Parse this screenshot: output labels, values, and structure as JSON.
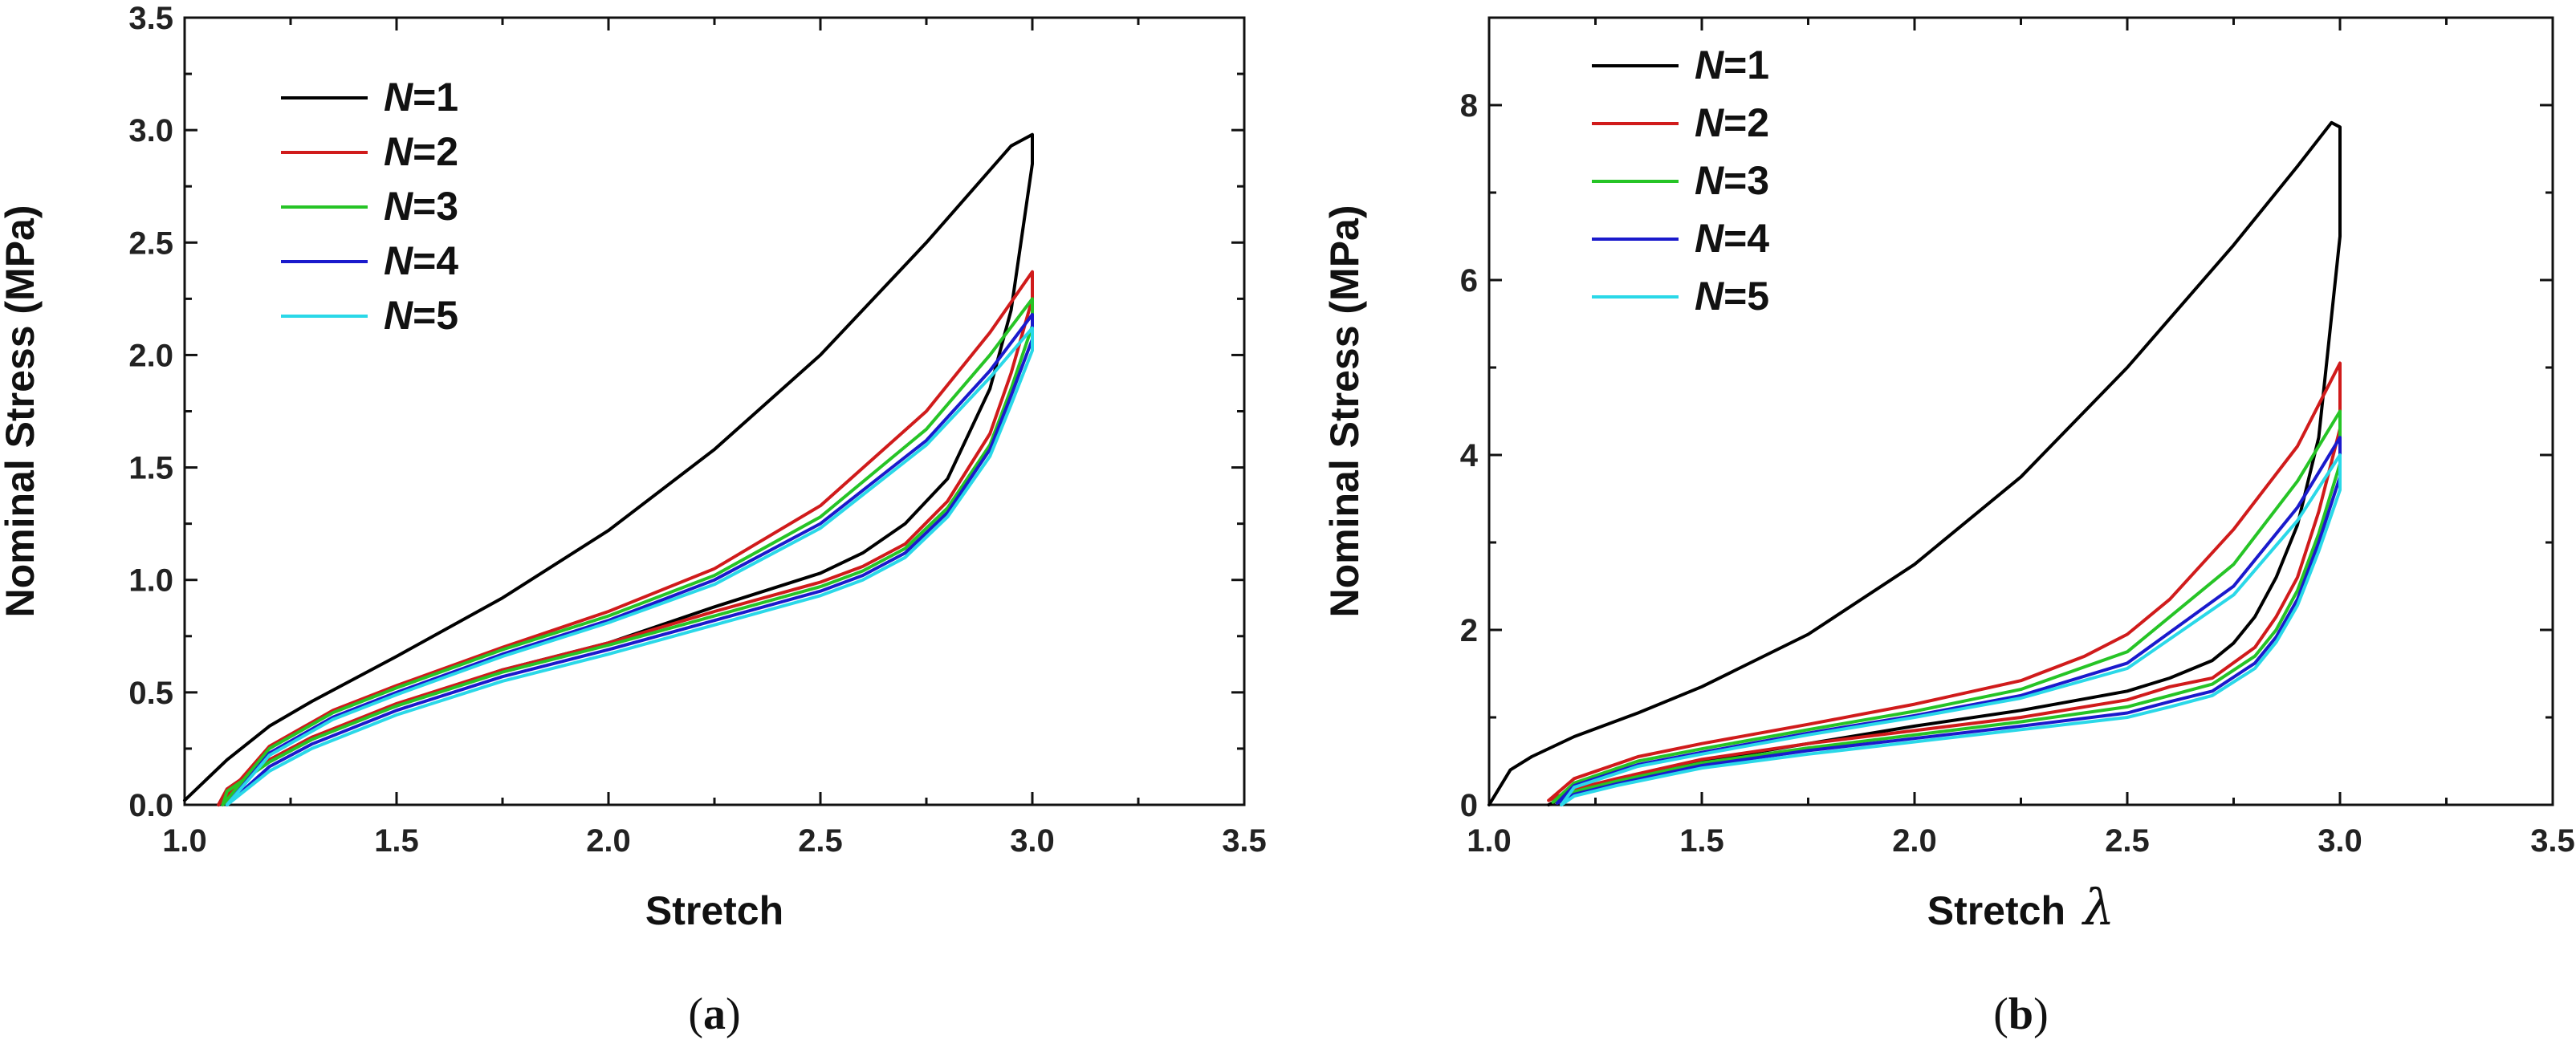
{
  "chart_data": [
    {
      "type": "line",
      "panel_label": "a",
      "xlabel": "Stretch",
      "ylabel": "Nominal Stress (MPa)",
      "xlim": [
        1.0,
        3.5
      ],
      "ylim": [
        0.0,
        3.5
      ],
      "xticks": [
        "1.0",
        "1.5",
        "2.0",
        "2.5",
        "3.0",
        "3.5"
      ],
      "yticks": [
        "0.0",
        "0.5",
        "1.0",
        "1.5",
        "2.0",
        "2.5",
        "3.0",
        "3.5"
      ],
      "legend": {
        "placement": "top-left"
      },
      "series": [
        {
          "name": "N=1",
          "label_var": "N",
          "label_val": "=1",
          "color": "#000000",
          "x": [
            1.0,
            1.1,
            1.2,
            1.3,
            1.5,
            1.75,
            2.0,
            2.25,
            2.5,
            2.75,
            2.95,
            3.0,
            3.0,
            2.95,
            2.9,
            2.8,
            2.7,
            2.6,
            2.5,
            2.25,
            2.0,
            1.75,
            1.5,
            1.3,
            1.2,
            1.1,
            1.08
          ],
          "y": [
            0.02,
            0.2,
            0.35,
            0.46,
            0.66,
            0.92,
            1.22,
            1.58,
            2.0,
            2.5,
            2.93,
            2.98,
            2.85,
            2.2,
            1.85,
            1.45,
            1.25,
            1.12,
            1.03,
            0.88,
            0.72,
            0.6,
            0.44,
            0.3,
            0.2,
            0.07,
            0.0
          ]
        },
        {
          "name": "N=2",
          "label_var": "N",
          "label_val": "=2",
          "color": "#d01b1b",
          "x": [
            1.08,
            1.2,
            1.35,
            1.5,
            1.75,
            2.0,
            2.25,
            2.5,
            2.75,
            2.9,
            3.0,
            3.0,
            2.95,
            2.9,
            2.8,
            2.7,
            2.6,
            2.5,
            2.25,
            2.0,
            1.75,
            1.5,
            1.3,
            1.2,
            1.1,
            1.08
          ],
          "y": [
            0.0,
            0.26,
            0.42,
            0.53,
            0.7,
            0.86,
            1.05,
            1.33,
            1.75,
            2.1,
            2.37,
            2.25,
            1.92,
            1.65,
            1.35,
            1.16,
            1.06,
            0.99,
            0.86,
            0.72,
            0.6,
            0.45,
            0.3,
            0.2,
            0.07,
            0.0
          ]
        },
        {
          "name": "N=3",
          "label_var": "N",
          "label_val": "=3",
          "color": "#26c426",
          "x": [
            1.09,
            1.2,
            1.35,
            1.5,
            1.75,
            2.0,
            2.25,
            2.5,
            2.75,
            2.9,
            3.0,
            3.0,
            2.95,
            2.9,
            2.8,
            2.7,
            2.6,
            2.5,
            2.25,
            2.0,
            1.75,
            1.5,
            1.3,
            1.2,
            1.1,
            1.09
          ],
          "y": [
            0.0,
            0.25,
            0.41,
            0.52,
            0.69,
            0.84,
            1.02,
            1.28,
            1.67,
            2.0,
            2.25,
            2.13,
            1.85,
            1.6,
            1.32,
            1.14,
            1.04,
            0.97,
            0.84,
            0.71,
            0.59,
            0.44,
            0.29,
            0.19,
            0.06,
            0.0
          ]
        },
        {
          "name": "N=4",
          "label_var": "N",
          "label_val": "=4",
          "color": "#1a1acc",
          "x": [
            1.1,
            1.2,
            1.35,
            1.5,
            1.75,
            2.0,
            2.25,
            2.5,
            2.75,
            2.9,
            3.0,
            3.0,
            2.95,
            2.9,
            2.8,
            2.7,
            2.6,
            2.5,
            2.25,
            2.0,
            1.75,
            1.5,
            1.3,
            1.2,
            1.1
          ],
          "y": [
            0.0,
            0.23,
            0.39,
            0.5,
            0.67,
            0.82,
            1.0,
            1.25,
            1.62,
            1.93,
            2.18,
            2.07,
            1.82,
            1.58,
            1.3,
            1.12,
            1.02,
            0.95,
            0.82,
            0.69,
            0.57,
            0.42,
            0.27,
            0.17,
            0.0
          ]
        },
        {
          "name": "N=5",
          "label_var": "N",
          "label_val": "=5",
          "color": "#2ad8e8",
          "x": [
            1.1,
            1.2,
            1.35,
            1.5,
            1.75,
            2.0,
            2.25,
            2.5,
            2.75,
            2.9,
            3.0,
            3.0,
            2.95,
            2.9,
            2.8,
            2.7,
            2.6,
            2.5,
            2.25,
            2.0,
            1.75,
            1.5,
            1.3,
            1.2,
            1.1
          ],
          "y": [
            0.0,
            0.22,
            0.38,
            0.49,
            0.66,
            0.81,
            0.98,
            1.23,
            1.6,
            1.9,
            2.12,
            2.02,
            1.78,
            1.55,
            1.28,
            1.1,
            1.0,
            0.93,
            0.8,
            0.67,
            0.55,
            0.4,
            0.25,
            0.15,
            0.0
          ]
        }
      ]
    },
    {
      "type": "line",
      "panel_label": "b",
      "xlabel": "Stretch",
      "xlabel_symbol": "λ",
      "ylabel": "Nominal Stress (MPa)",
      "xlim": [
        1.0,
        3.5
      ],
      "ylim": [
        0,
        9
      ],
      "xticks": [
        "1.0",
        "1.5",
        "2.0",
        "2.5",
        "3.0",
        "3.5"
      ],
      "yticks": [
        "0",
        "2",
        "4",
        "6",
        "8"
      ],
      "legend": {
        "placement": "top-left"
      },
      "series": [
        {
          "name": "N=1",
          "label_var": "N",
          "label_val": "=1",
          "color": "#000000",
          "x": [
            1.0,
            1.05,
            1.1,
            1.2,
            1.35,
            1.5,
            1.75,
            2.0,
            2.25,
            2.5,
            2.75,
            2.9,
            2.98,
            3.0,
            3.0,
            2.95,
            2.9,
            2.85,
            2.8,
            2.75,
            2.7,
            2.6,
            2.5,
            2.25,
            2.0,
            1.75,
            1.5,
            1.35,
            1.25,
            1.18,
            1.14
          ],
          "y": [
            0.0,
            0.4,
            0.55,
            0.78,
            1.05,
            1.35,
            1.95,
            2.75,
            3.75,
            5.0,
            6.4,
            7.3,
            7.8,
            7.75,
            6.5,
            4.2,
            3.2,
            2.6,
            2.15,
            1.85,
            1.65,
            1.45,
            1.3,
            1.08,
            0.9,
            0.7,
            0.5,
            0.35,
            0.22,
            0.1,
            0.0
          ]
        },
        {
          "name": "N=2",
          "label_var": "N",
          "label_val": "=2",
          "color": "#d01b1b",
          "x": [
            1.14,
            1.2,
            1.35,
            1.5,
            1.75,
            2.0,
            2.25,
            2.4,
            2.5,
            2.6,
            2.75,
            2.9,
            3.0,
            3.0,
            2.95,
            2.9,
            2.85,
            2.8,
            2.7,
            2.6,
            2.5,
            2.25,
            2.0,
            1.75,
            1.5,
            1.3,
            1.2,
            1.14
          ],
          "y": [
            0.05,
            0.3,
            0.55,
            0.7,
            0.92,
            1.15,
            1.42,
            1.7,
            1.95,
            2.35,
            3.15,
            4.1,
            5.05,
            4.3,
            3.35,
            2.6,
            2.15,
            1.8,
            1.45,
            1.35,
            1.2,
            1.0,
            0.85,
            0.7,
            0.52,
            0.3,
            0.18,
            0.05
          ]
        },
        {
          "name": "N=3",
          "label_var": "N",
          "label_val": "=3",
          "color": "#26c426",
          "x": [
            1.15,
            1.2,
            1.35,
            1.5,
            1.75,
            2.0,
            2.25,
            2.5,
            2.75,
            2.9,
            3.0,
            3.0,
            2.95,
            2.9,
            2.85,
            2.8,
            2.7,
            2.6,
            2.5,
            2.25,
            2.0,
            1.75,
            1.5,
            1.3,
            1.2,
            1.15
          ],
          "y": [
            0.03,
            0.25,
            0.5,
            0.64,
            0.86,
            1.07,
            1.32,
            1.75,
            2.75,
            3.7,
            4.5,
            3.9,
            3.1,
            2.45,
            2.0,
            1.7,
            1.38,
            1.25,
            1.12,
            0.95,
            0.8,
            0.65,
            0.48,
            0.27,
            0.15,
            0.03
          ]
        },
        {
          "name": "N=4",
          "label_var": "N",
          "label_val": "=4",
          "color": "#1a1acc",
          "x": [
            1.16,
            1.2,
            1.35,
            1.5,
            1.75,
            2.0,
            2.25,
            2.5,
            2.75,
            2.9,
            3.0,
            3.0,
            2.95,
            2.9,
            2.85,
            2.8,
            2.7,
            2.6,
            2.5,
            2.25,
            2.0,
            1.75,
            1.5,
            1.3,
            1.2,
            1.16
          ],
          "y": [
            0.02,
            0.22,
            0.46,
            0.6,
            0.82,
            1.02,
            1.25,
            1.62,
            2.5,
            3.4,
            4.2,
            3.75,
            3.0,
            2.35,
            1.92,
            1.62,
            1.3,
            1.18,
            1.05,
            0.9,
            0.76,
            0.62,
            0.45,
            0.24,
            0.12,
            0.02
          ]
        },
        {
          "name": "N=5",
          "label_var": "N",
          "label_val": "=5",
          "color": "#2ad8e8",
          "x": [
            1.17,
            1.2,
            1.35,
            1.5,
            1.75,
            2.0,
            2.25,
            2.5,
            2.75,
            2.9,
            3.0,
            3.0,
            2.95,
            2.9,
            2.85,
            2.8,
            2.7,
            2.6,
            2.5,
            2.25,
            2.0,
            1.75,
            1.5,
            1.3,
            1.2,
            1.17
          ],
          "y": [
            0.0,
            0.2,
            0.44,
            0.58,
            0.8,
            1.0,
            1.22,
            1.56,
            2.4,
            3.25,
            4.0,
            3.6,
            2.9,
            2.28,
            1.86,
            1.56,
            1.25,
            1.12,
            1.0,
            0.86,
            0.72,
            0.58,
            0.42,
            0.22,
            0.1,
            0.0
          ]
        }
      ]
    }
  ]
}
